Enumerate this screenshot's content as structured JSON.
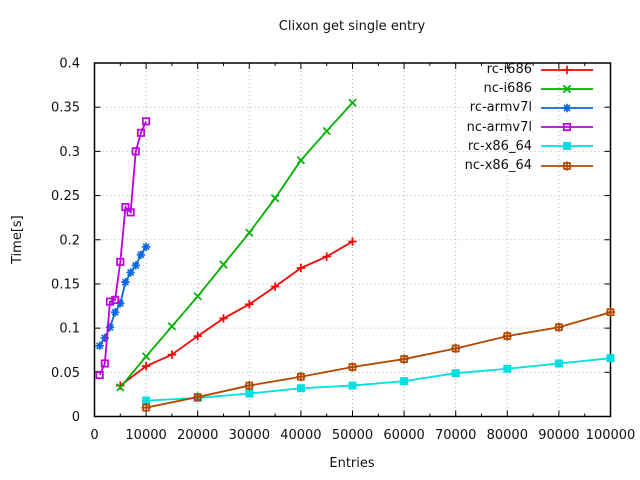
{
  "background": "#ffffff",
  "chart_data": {
    "type": "line",
    "title": "Clixon get single entry",
    "xlabel": "Entries",
    "ylabel": "Time[s]",
    "xlim": [
      0,
      100000
    ],
    "ylim": [
      0,
      0.4
    ],
    "grid": true,
    "grid_style": "dotted",
    "grid_color": "#b4b4b4",
    "border_color": "#000000",
    "legend_position": "top-right-inside",
    "x_minor_step": 5000,
    "x_ticks": [
      {
        "v": 0,
        "label": "0"
      },
      {
        "v": 10000,
        "label": "10000"
      },
      {
        "v": 20000,
        "label": "20000"
      },
      {
        "v": 30000,
        "label": "30000"
      },
      {
        "v": 40000,
        "label": "40000"
      },
      {
        "v": 50000,
        "label": "50000"
      },
      {
        "v": 60000,
        "label": "60000"
      },
      {
        "v": 70000,
        "label": "70000"
      },
      {
        "v": 80000,
        "label": "80000"
      },
      {
        "v": 90000,
        "label": "90000"
      },
      {
        "v": 100000,
        "label": "100000"
      }
    ],
    "y_ticks": [
      {
        "v": 0,
        "label": "0"
      },
      {
        "v": 0.05,
        "label": "0.05"
      },
      {
        "v": 0.1,
        "label": "0.1"
      },
      {
        "v": 0.15,
        "label": "0.15"
      },
      {
        "v": 0.2,
        "label": "0.2"
      },
      {
        "v": 0.25,
        "label": "0.25"
      },
      {
        "v": 0.3,
        "label": "0.3"
      },
      {
        "v": 0.35,
        "label": "0.35"
      },
      {
        "v": 0.4,
        "label": "0.4"
      }
    ],
    "series": [
      {
        "name": "rc-i686",
        "color": "#ff0000",
        "marker": "plus",
        "x": [
          5000,
          10000,
          15000,
          20000,
          25000,
          30000,
          35000,
          40000,
          45000,
          50000
        ],
        "y": [
          0.035,
          0.057,
          0.07,
          0.091,
          0.111,
          0.127,
          0.147,
          0.168,
          0.181,
          0.198
        ]
      },
      {
        "name": "nc-i686",
        "color": "#00b000",
        "marker": "cross",
        "x": [
          5000,
          10000,
          15000,
          20000,
          25000,
          30000,
          35000,
          40000,
          45000,
          50000
        ],
        "y": [
          0.033,
          0.068,
          0.102,
          0.136,
          0.172,
          0.208,
          0.247,
          0.29,
          0.323,
          0.355
        ]
      },
      {
        "name": "rc-armv7l",
        "color": "#0868e0",
        "marker": "asterisk",
        "x": [
          1000,
          2000,
          3000,
          4000,
          5000,
          6000,
          7000,
          8000,
          9000,
          10000
        ],
        "y": [
          0.08,
          0.089,
          0.101,
          0.118,
          0.128,
          0.152,
          0.163,
          0.171,
          0.183,
          0.192
        ]
      },
      {
        "name": "nc-armv7l",
        "color": "#bb00dd",
        "marker": "square-open",
        "x": [
          1000,
          2000,
          3000,
          4000,
          5000,
          6000,
          7000,
          8000,
          9000,
          10000
        ],
        "y": [
          0.047,
          0.06,
          0.13,
          0.132,
          0.175,
          0.237,
          0.231,
          0.3,
          0.321,
          0.334
        ]
      },
      {
        "name": "rc-x86_64",
        "color": "#00e0e0",
        "marker": "square-filled",
        "x": [
          10000,
          20000,
          30000,
          40000,
          50000,
          60000,
          70000,
          80000,
          90000,
          100000
        ],
        "y": [
          0.018,
          0.021,
          0.026,
          0.032,
          0.035,
          0.04,
          0.049,
          0.054,
          0.06,
          0.066
        ]
      },
      {
        "name": "nc-x86_64",
        "color": "#b34700",
        "marker": "square-plus",
        "x": [
          10000,
          20000,
          30000,
          40000,
          50000,
          60000,
          70000,
          80000,
          90000,
          100000
        ],
        "y": [
          0.01,
          0.022,
          0.035,
          0.045,
          0.056,
          0.065,
          0.077,
          0.091,
          0.101,
          0.118
        ]
      }
    ]
  }
}
